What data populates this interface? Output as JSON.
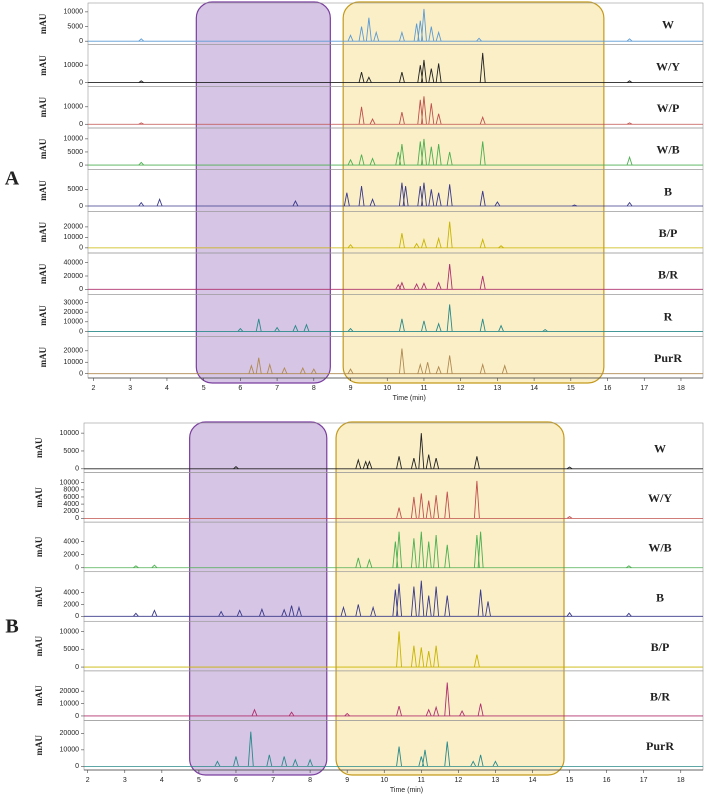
{
  "chart_data": [
    {
      "type": "chromatogram",
      "label": "A",
      "xlabel": "Time (min)",
      "xlim": [
        1.85,
        18.6
      ],
      "xticks": [
        2,
        3,
        4,
        5,
        6,
        7,
        8,
        9,
        10,
        11,
        12,
        13,
        14,
        15,
        16,
        17,
        18
      ],
      "regions": [
        {
          "xlim": [
            4.8,
            8.45
          ],
          "color": "#a57fc6",
          "edge": "#7a3f9e"
        },
        {
          "xlim": [
            8.8,
            15.9
          ],
          "color": "#f7dc86",
          "edge": "#c49a1c"
        }
      ],
      "series": [
        {
          "name": "W",
          "color": "#5b9bd5",
          "ylabel": "mAU",
          "ylim": [
            -500,
            12000
          ],
          "yticks": [
            0,
            5000,
            10000
          ],
          "x": [
            3.3,
            9.0,
            9.3,
            9.5,
            9.7,
            10.4,
            10.8,
            10.9,
            11.0,
            11.2,
            11.4,
            12.5,
            16.6
          ],
          "values": [
            800,
            2000,
            5000,
            8000,
            3000,
            3000,
            6000,
            7000,
            11000,
            5000,
            3000,
            1000,
            800
          ]
        },
        {
          "name": "W/Y",
          "color": "#222222",
          "ylabel": "mAU",
          "ylim": [
            -1000,
            20000
          ],
          "yticks": [
            0,
            10000
          ],
          "x": [
            3.3,
            9.3,
            9.5,
            10.4,
            10.9,
            11.0,
            11.2,
            11.4,
            12.6,
            16.6
          ],
          "values": [
            1000,
            6000,
            3000,
            6000,
            10000,
            13000,
            8000,
            11000,
            17000,
            1000
          ]
        },
        {
          "name": "W/P",
          "color": "#c0504d",
          "ylabel": "mAU",
          "ylim": [
            -1000,
            20000
          ],
          "yticks": [
            0,
            10000
          ],
          "x": [
            3.3,
            9.3,
            9.6,
            10.4,
            10.9,
            11.0,
            11.2,
            11.4,
            12.6,
            16.6
          ],
          "values": [
            800,
            10000,
            3000,
            7000,
            14000,
            16000,
            12000,
            6000,
            4000,
            800
          ]
        },
        {
          "name": "W/B",
          "color": "#4caf50",
          "ylabel": "mAU",
          "ylim": [
            -1000,
            13000
          ],
          "yticks": [
            0,
            5000,
            10000
          ],
          "x": [
            3.3,
            9.0,
            9.3,
            9.6,
            10.3,
            10.4,
            10.9,
            11.0,
            11.2,
            11.4,
            11.7,
            12.6,
            16.6
          ],
          "values": [
            1000,
            2000,
            4000,
            2500,
            5000,
            8000,
            9000,
            10000,
            7000,
            8000,
            5000,
            9000,
            3000
          ]
        },
        {
          "name": "B",
          "color": "#3a3a8a",
          "ylabel": "mAU",
          "ylim": [
            -1000,
            10000
          ],
          "yticks": [
            0,
            5000
          ],
          "x": [
            3.3,
            3.8,
            7.5,
            8.9,
            9.3,
            9.6,
            10.4,
            10.5,
            10.9,
            11.0,
            11.2,
            11.4,
            11.7,
            12.6,
            13.0,
            15.1,
            16.6
          ],
          "values": [
            1000,
            2000,
            1500,
            4000,
            6000,
            2000,
            7000,
            6000,
            6000,
            7000,
            5000,
            4000,
            6500,
            4500,
            1200,
            300,
            1000
          ]
        },
        {
          "name": "B/P",
          "color": "#c8b400",
          "ylabel": "mAU",
          "ylim": [
            -3000,
            32000
          ],
          "yticks": [
            0,
            10000,
            20000
          ],
          "x": [
            9.0,
            10.4,
            10.8,
            11.0,
            11.4,
            11.7,
            12.6,
            13.1
          ],
          "values": [
            3000,
            14000,
            4000,
            8000,
            9000,
            25000,
            8000,
            2000
          ]
        },
        {
          "name": "B/R",
          "color": "#b0306e",
          "ylabel": "mAU",
          "ylim": [
            -5000,
            50000
          ],
          "yticks": [
            0,
            20000,
            40000
          ],
          "x": [
            10.3,
            10.4,
            10.8,
            11.0,
            11.4,
            11.7,
            12.6
          ],
          "values": [
            7000,
            10000,
            8000,
            9000,
            10000,
            38000,
            20000
          ]
        },
        {
          "name": "R",
          "color": "#2a8a8a",
          "ylabel": "mAU",
          "ylim": [
            -3000,
            35000
          ],
          "yticks": [
            0,
            10000,
            20000,
            30000
          ],
          "x": [
            6.0,
            6.5,
            7.0,
            7.5,
            7.8,
            9.0,
            10.4,
            11.0,
            11.4,
            11.7,
            12.6,
            13.1,
            14.3
          ],
          "values": [
            3000,
            13000,
            4000,
            6000,
            7000,
            3000,
            13000,
            11000,
            8000,
            28000,
            13000,
            6000,
            2000
          ]
        },
        {
          "name": "PurR",
          "color": "#b08a50",
          "ylabel": "mAU",
          "ylim": [
            -2000,
            30000
          ],
          "yticks": [
            0,
            10000,
            20000
          ],
          "x": [
            6.3,
            6.5,
            6.8,
            7.2,
            7.7,
            8.0,
            9.0,
            10.4,
            10.9,
            11.1,
            11.4,
            11.7,
            12.6,
            13.2
          ],
          "values": [
            7000,
            14000,
            8000,
            5000,
            5000,
            4000,
            4000,
            22000,
            8000,
            10000,
            6000,
            16000,
            8000,
            7000
          ]
        }
      ]
    },
    {
      "type": "chromatogram",
      "label": "B",
      "xlabel": "Time (min)",
      "xlim": [
        1.9,
        18.6
      ],
      "xticks": [
        2,
        3,
        4,
        5,
        6,
        7,
        8,
        9,
        10,
        11,
        12,
        13,
        14,
        15,
        16,
        17,
        18
      ],
      "regions": [
        {
          "xlim": [
            4.75,
            8.45
          ],
          "color": "#a57fc6",
          "edge": "#7a3f9e"
        },
        {
          "xlim": [
            8.7,
            14.85
          ],
          "color": "#f7dc86",
          "edge": "#c49a1c"
        }
      ],
      "series": [
        {
          "name": "W",
          "color": "#222222",
          "ylabel": "mAU",
          "ylim": [
            -500,
            12000
          ],
          "yticks": [
            0,
            5000,
            10000
          ],
          "x": [
            6.0,
            9.3,
            9.5,
            9.6,
            10.4,
            10.8,
            11.0,
            11.2,
            11.4,
            12.5,
            15.0
          ],
          "values": [
            600,
            2500,
            2000,
            2000,
            3500,
            3000,
            10000,
            4000,
            3000,
            3500,
            500
          ]
        },
        {
          "name": "W/Y",
          "color": "#c0504d",
          "ylabel": "mAU",
          "ylim": [
            -500,
            12000
          ],
          "yticks": [
            0,
            2000,
            4000,
            6000,
            8000,
            10000
          ],
          "x": [
            10.4,
            10.8,
            11.0,
            11.2,
            11.4,
            11.7,
            12.5,
            15.0
          ],
          "values": [
            3000,
            6000,
            7000,
            5000,
            6500,
            7500,
            10500,
            500
          ]
        },
        {
          "name": "W/B",
          "color": "#4caf50",
          "ylabel": "mAU",
          "ylim": [
            -300,
            6500
          ],
          "yticks": [
            0,
            2000,
            4000
          ],
          "x": [
            3.3,
            3.8,
            9.3,
            9.6,
            10.3,
            10.4,
            10.8,
            11.0,
            11.2,
            11.4,
            11.7,
            12.5,
            12.6,
            16.6
          ],
          "values": [
            300,
            400,
            1500,
            1200,
            4000,
            5500,
            4500,
            5500,
            4000,
            5000,
            3500,
            5000,
            5500,
            300
          ]
        },
        {
          "name": "B",
          "color": "#3a3a8a",
          "ylabel": "mAU",
          "ylim": [
            -500,
            7000
          ],
          "yticks": [
            0,
            2000,
            4000
          ],
          "x": [
            3.3,
            3.8,
            5.6,
            6.1,
            6.7,
            7.3,
            7.5,
            7.7,
            8.9,
            9.3,
            9.7,
            10.3,
            10.4,
            10.8,
            11.0,
            11.2,
            11.4,
            11.7,
            12.6,
            12.8,
            15.0,
            16.6
          ],
          "values": [
            500,
            1000,
            800,
            1000,
            1200,
            1100,
            1800,
            1500,
            1500,
            2000,
            1500,
            4500,
            5500,
            5000,
            6000,
            3500,
            5000,
            3500,
            4500,
            2500,
            600,
            500
          ]
        },
        {
          "name": "B/P",
          "color": "#c8b400",
          "ylabel": "mAU",
          "ylim": [
            -500,
            12000
          ],
          "yticks": [
            0,
            5000,
            10000
          ],
          "x": [
            10.4,
            10.8,
            11.0,
            11.2,
            11.4,
            12.5
          ],
          "values": [
            10000,
            6000,
            5500,
            4500,
            6000,
            3500
          ]
        },
        {
          "name": "B/R",
          "color": "#b0306e",
          "ylabel": "mAU",
          "ylim": [
            -2000,
            34000
          ],
          "yticks": [
            0,
            10000,
            20000
          ],
          "x": [
            6.5,
            7.5,
            9.0,
            10.4,
            11.2,
            11.4,
            11.7,
            12.1,
            12.6
          ],
          "values": [
            5000,
            3000,
            2000,
            8000,
            5000,
            7000,
            27000,
            4000,
            10000
          ]
        },
        {
          "name": "PurR",
          "color": "#2a8a8a",
          "ylabel": "mAU",
          "ylim": [
            -1000,
            26000
          ],
          "yticks": [
            0,
            10000,
            20000
          ],
          "x": [
            5.5,
            6.0,
            6.4,
            6.9,
            7.3,
            7.6,
            8.0,
            10.4,
            11.0,
            11.1,
            11.7,
            12.4,
            12.6,
            13.0
          ],
          "values": [
            3000,
            6000,
            21000,
            7000,
            6000,
            4000,
            4000,
            12000,
            6000,
            10000,
            15000,
            3000,
            7000,
            3000
          ]
        }
      ]
    }
  ]
}
